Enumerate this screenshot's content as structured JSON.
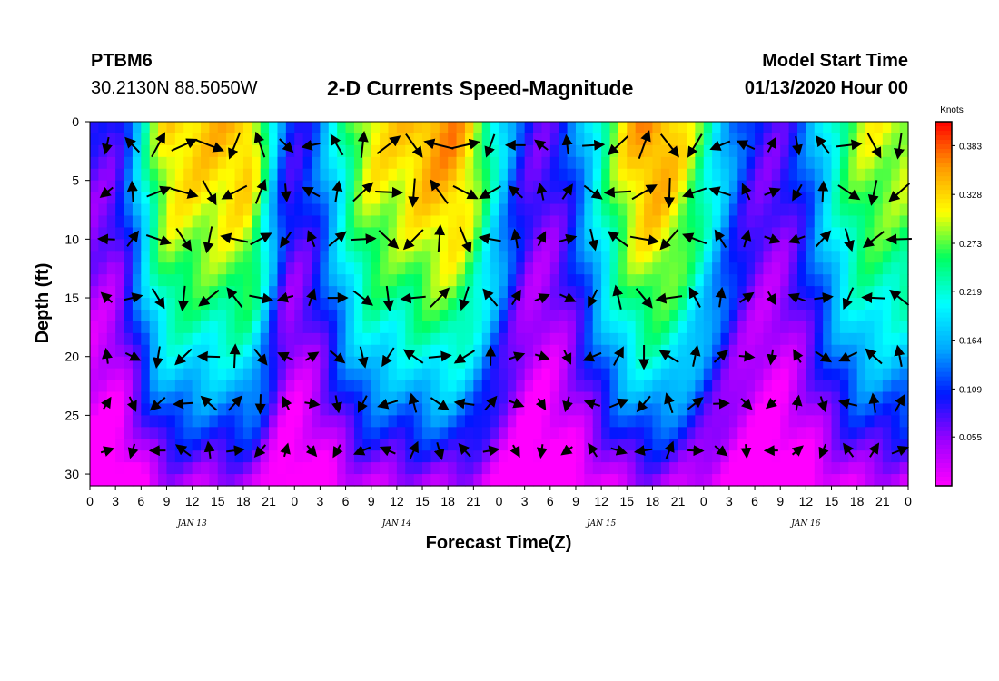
{
  "header": {
    "station": "PTBM6",
    "coords": "30.2130N 88.5050W",
    "title": "2-D Currents Speed-Magnitude",
    "start_label": "Model Start Time",
    "start_value": "01/13/2020 Hour 00"
  },
  "chart_data": {
    "type": "heatmap",
    "title": "2-D Currents Speed-Magnitude",
    "xlabel": "Forecast Time(Z)",
    "ylabel": "Depth (ft)",
    "x_ticks": [
      "0",
      "3",
      "6",
      "9",
      "12",
      "15",
      "18",
      "21",
      "0",
      "3",
      "6",
      "9",
      "12",
      "15",
      "18",
      "21",
      "0",
      "3",
      "6",
      "9",
      "12",
      "15",
      "18",
      "21",
      "0",
      "3",
      "6",
      "9",
      "12",
      "15",
      "18",
      "21",
      "0"
    ],
    "x_range_hours": [
      0,
      96
    ],
    "date_labels": [
      {
        "label": "JAN 13",
        "hour": 12
      },
      {
        "label": "JAN 14",
        "hour": 36
      },
      {
        "label": "JAN 15",
        "hour": 60
      },
      {
        "label": "JAN 16",
        "hour": 84
      }
    ],
    "y_ticks": [
      "0",
      "5",
      "10",
      "15",
      "20",
      "25",
      "30"
    ],
    "y_range_ft": [
      0,
      31
    ],
    "y_inverted": true,
    "colorbar": {
      "units": "Knots",
      "ticks": [
        "0.383",
        "0.328",
        "0.273",
        "0.219",
        "0.164",
        "0.109",
        "0.055"
      ],
      "tick_values": [
        0.383,
        0.328,
        0.273,
        0.219,
        0.164,
        0.109,
        0.055
      ],
      "range": [
        0.0,
        0.41
      ],
      "colors": [
        "#ff00ff",
        "#9b00ff",
        "#0018ff",
        "#00a8ff",
        "#00ffff",
        "#00ff60",
        "#ffff00",
        "#ff9900",
        "#ff0000"
      ]
    },
    "surface_speed_peaks": [
      {
        "hour": 2,
        "speed": 0.08
      },
      {
        "hour": 10,
        "speed": 0.33
      },
      {
        "hour": 18,
        "speed": 0.34
      },
      {
        "hour": 24,
        "speed": 0.1
      },
      {
        "hour": 34,
        "speed": 0.32
      },
      {
        "hour": 42,
        "speed": 0.36
      },
      {
        "hour": 53,
        "speed": 0.08
      },
      {
        "hour": 66,
        "speed": 0.36
      },
      {
        "hour": 80,
        "speed": 0.08
      },
      {
        "hour": 92,
        "speed": 0.3
      }
    ]
  }
}
